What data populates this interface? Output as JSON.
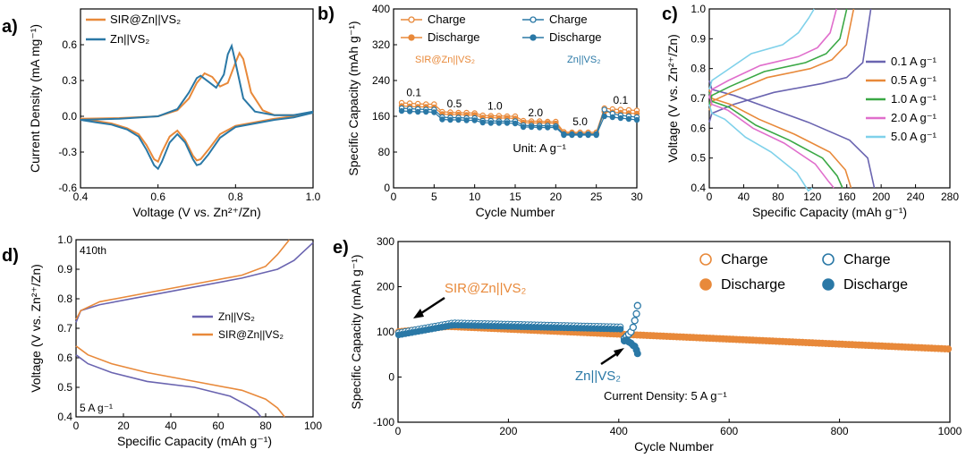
{
  "panels": [
    {
      "label": "a)"
    },
    {
      "label": "b)"
    },
    {
      "label": "c)"
    },
    {
      "label": "d)"
    },
    {
      "label": "e)"
    }
  ],
  "colors": {
    "orange": "#e8893a",
    "blue": "#2a78a6",
    "purple": "#6a64b0",
    "green": "#3aa845",
    "pink": "#e06ecc",
    "lightblue": "#7fd1ea"
  },
  "chart_data": [
    {
      "id": "a",
      "type": "line",
      "xlabel": "Voltage (V vs. Zn²⁺/Zn)",
      "ylabel": "Current Density (mA mg⁻¹)",
      "xlim": [
        0.4,
        1.0
      ],
      "ylim": [
        -0.6,
        0.9
      ],
      "xticks": [
        "0.4",
        "0.6",
        "0.8",
        "1.0"
      ],
      "yticks": [
        "-0.6",
        "-0.3",
        "0.0",
        "0.3",
        "0.6"
      ],
      "ytick_values": [
        -0.6,
        -0.3,
        0.0,
        0.3,
        0.6
      ],
      "legend": [
        "SIR@Zn||VS₂",
        "Zn||VS₂"
      ],
      "series": [
        {
          "name": "SIR@Zn||VS₂",
          "color": "#e8893a",
          "anodic_x": [
            0.4,
            0.5,
            0.6,
            0.65,
            0.68,
            0.7,
            0.72,
            0.74,
            0.76,
            0.78,
            0.8,
            0.81,
            0.82,
            0.84,
            0.87,
            0.9,
            0.95,
            1.0
          ],
          "anodic_y": [
            -0.02,
            -0.015,
            0.0,
            0.05,
            0.15,
            0.28,
            0.36,
            0.33,
            0.25,
            0.28,
            0.45,
            0.53,
            0.48,
            0.2,
            0.05,
            0.01,
            0.01,
            0.03
          ],
          "cathodic_x": [
            1.0,
            0.95,
            0.9,
            0.85,
            0.8,
            0.76,
            0.73,
            0.71,
            0.7,
            0.69,
            0.67,
            0.65,
            0.63,
            0.61,
            0.6,
            0.59,
            0.57,
            0.55,
            0.52,
            0.48,
            0.44,
            0.4
          ],
          "cathodic_y": [
            0.03,
            0.0,
            -0.02,
            -0.05,
            -0.08,
            -0.15,
            -0.28,
            -0.36,
            -0.37,
            -0.33,
            -0.2,
            -0.12,
            -0.17,
            -0.3,
            -0.38,
            -0.36,
            -0.24,
            -0.15,
            -0.1,
            -0.06,
            -0.04,
            -0.02
          ]
        },
        {
          "name": "Zn||VS₂",
          "color": "#2a78a6",
          "anodic_x": [
            0.4,
            0.5,
            0.6,
            0.65,
            0.68,
            0.7,
            0.71,
            0.73,
            0.75,
            0.77,
            0.78,
            0.79,
            0.8,
            0.82,
            0.85,
            0.9,
            0.95,
            1.0
          ],
          "anodic_y": [
            -0.03,
            -0.02,
            0.0,
            0.06,
            0.2,
            0.32,
            0.34,
            0.29,
            0.24,
            0.35,
            0.52,
            0.59,
            0.45,
            0.15,
            0.04,
            0.01,
            0.01,
            0.04
          ],
          "cathodic_x": [
            1.0,
            0.95,
            0.9,
            0.85,
            0.8,
            0.76,
            0.73,
            0.71,
            0.7,
            0.69,
            0.67,
            0.65,
            0.63,
            0.61,
            0.6,
            0.59,
            0.57,
            0.55,
            0.52,
            0.48,
            0.44,
            0.4
          ],
          "cathodic_y": [
            0.03,
            -0.01,
            -0.03,
            -0.06,
            -0.09,
            -0.18,
            -0.32,
            -0.4,
            -0.41,
            -0.36,
            -0.22,
            -0.15,
            -0.22,
            -0.38,
            -0.44,
            -0.41,
            -0.28,
            -0.17,
            -0.11,
            -0.07,
            -0.05,
            -0.03
          ]
        }
      ]
    },
    {
      "id": "b",
      "type": "line",
      "xlabel": "Cycle Number",
      "ylabel": "Specific Capacity (mAh g⁻¹)",
      "xlim": [
        0,
        30
      ],
      "ylim": [
        0,
        400
      ],
      "xticks": [
        "0",
        "5",
        "10",
        "15",
        "20",
        "25",
        "30"
      ],
      "yticks": [
        "0",
        "80",
        "160",
        "240",
        "320",
        "400"
      ],
      "ytick_values": [
        0,
        80,
        160,
        240,
        320,
        400
      ],
      "rate_labels": [
        "0.1",
        "0.5",
        "1.0",
        "2.0",
        "5.0",
        "0.1"
      ],
      "rate_label_x": [
        2.5,
        7.5,
        12.5,
        17.5,
        23,
        28
      ],
      "rate_label_y": [
        205,
        180,
        175,
        160,
        140,
        188
      ],
      "unit_text": "Unit: A g⁻¹",
      "legend_sir": [
        "Charge",
        "Discharge"
      ],
      "legend_zn": [
        "Charge",
        "Discharge"
      ],
      "legend_sir_title": "SIR@Zn||VS₂",
      "legend_zn_title": "Zn||VS₂",
      "series": [
        {
          "name": "SIR Charge",
          "color": "#e8893a",
          "filled": false,
          "x": [
            1,
            2,
            3,
            4,
            5,
            6,
            7,
            8,
            9,
            10,
            11,
            12,
            13,
            14,
            15,
            16,
            17,
            18,
            19,
            20,
            21,
            22,
            23,
            24,
            25,
            26,
            27,
            28,
            29,
            30
          ],
          "y": [
            190,
            189,
            188,
            187,
            187,
            170,
            169,
            168,
            168,
            167,
            162,
            161,
            161,
            160,
            160,
            150,
            149,
            149,
            148,
            148,
            125,
            124,
            124,
            124,
            124,
            178,
            176,
            175,
            174,
            173
          ]
        },
        {
          "name": "SIR Discharge",
          "color": "#e8893a",
          "filled": true,
          "x": [
            1,
            2,
            3,
            4,
            5,
            6,
            7,
            8,
            9,
            10,
            11,
            12,
            13,
            14,
            15,
            16,
            17,
            18,
            19,
            20,
            21,
            22,
            23,
            24,
            25,
            26,
            27,
            28,
            29,
            30
          ],
          "y": [
            183,
            182,
            181,
            181,
            180,
            165,
            164,
            164,
            163,
            163,
            157,
            157,
            156,
            156,
            155,
            146,
            145,
            145,
            145,
            144,
            122,
            122,
            121,
            121,
            121,
            170,
            169,
            168,
            167,
            166
          ]
        },
        {
          "name": "Zn Charge",
          "color": "#2a78a6",
          "filled": false,
          "x": [
            1,
            2,
            3,
            4,
            5,
            6,
            7,
            8,
            9,
            10,
            11,
            12,
            13,
            14,
            15,
            16,
            17,
            18,
            19,
            20,
            21,
            22,
            23,
            24,
            25,
            26,
            27,
            28,
            29,
            30
          ],
          "y": [
            178,
            177,
            176,
            175,
            175,
            158,
            157,
            157,
            156,
            156,
            150,
            150,
            149,
            149,
            149,
            140,
            139,
            139,
            139,
            138,
            120,
            120,
            120,
            120,
            120,
            175,
            166,
            162,
            160,
            158
          ]
        },
        {
          "name": "Zn Discharge",
          "color": "#2a78a6",
          "filled": true,
          "x": [
            1,
            2,
            3,
            4,
            5,
            6,
            7,
            8,
            9,
            10,
            11,
            12,
            13,
            14,
            15,
            16,
            17,
            18,
            19,
            20,
            21,
            22,
            23,
            24,
            25,
            26,
            27,
            28,
            29,
            30
          ],
          "y": [
            172,
            171,
            170,
            170,
            169,
            153,
            152,
            152,
            151,
            151,
            146,
            145,
            145,
            145,
            144,
            136,
            136,
            135,
            135,
            135,
            118,
            118,
            118,
            118,
            118,
            160,
            158,
            156,
            154,
            152
          ]
        }
      ]
    },
    {
      "id": "c",
      "type": "line",
      "xlabel": "Specific Capacity (mAh g⁻¹)",
      "ylabel": "Voltage (V vs. Zn²⁺/Zn)",
      "xlim": [
        0,
        280
      ],
      "ylim": [
        0.4,
        1.0
      ],
      "xticks": [
        "0",
        "40",
        "80",
        "120",
        "160",
        "200",
        "240",
        "280"
      ],
      "yticks": [
        "0.4",
        "0.5",
        "0.6",
        "0.7",
        "0.8",
        "0.9",
        "1.0"
      ],
      "ytick_values": [
        0.4,
        0.5,
        0.6,
        0.7,
        0.8,
        0.9,
        1.0
      ],
      "legend": [
        "0.1 A g⁻¹",
        "0.5 A g⁻¹",
        "1.0 A g⁻¹",
        "2.0 A g⁻¹",
        "5.0 A g⁻¹"
      ],
      "series": [
        {
          "name": "0.1 A g⁻¹",
          "color": "#6a64b0",
          "charge_cap": 188,
          "dis_cap": 192,
          "c_start": 0.62,
          "c_mid": 0.75,
          "c_end_start": 0.77,
          "d_start": 0.76,
          "d_mid": 0.6,
          "d_end": 0.56
        },
        {
          "name": "0.5 A g⁻¹",
          "color": "#e8893a",
          "charge_cap": 168,
          "dis_cap": 165,
          "c_start": 0.66,
          "c_mid": 0.8,
          "c_end_start": 0.83,
          "d_start": 0.73,
          "d_mid": 0.56,
          "d_end": 0.52
        },
        {
          "name": "1.0 A g⁻¹",
          "color": "#3aa845",
          "charge_cap": 160,
          "dis_cap": 155,
          "c_start": 0.68,
          "c_mid": 0.82,
          "c_end_start": 0.85,
          "d_start": 0.72,
          "d_mid": 0.54,
          "d_end": 0.5
        },
        {
          "name": "2.0 A g⁻¹",
          "color": "#e06ecc",
          "charge_cap": 148,
          "dis_cap": 145,
          "c_start": 0.7,
          "c_mid": 0.84,
          "c_end_start": 0.87,
          "d_start": 0.71,
          "d_mid": 0.53,
          "d_end": 0.48
        },
        {
          "name": "5.0 A g⁻¹",
          "color": "#7fd1ea",
          "charge_cap": 122,
          "dis_cap": 120,
          "c_start": 0.73,
          "c_mid": 0.88,
          "c_end_start": 0.92,
          "d_start": 0.68,
          "d_mid": 0.5,
          "d_end": 0.45
        }
      ]
    },
    {
      "id": "d",
      "type": "line",
      "xlabel": "Specific Capacity (mAh g⁻¹)",
      "ylabel": "Voltage (V vs. Zn²⁺/Zn)",
      "xlim": [
        0,
        100
      ],
      "ylim": [
        0.4,
        1.0
      ],
      "xticks": [
        "0",
        "20",
        "40",
        "60",
        "80",
        "100"
      ],
      "yticks": [
        "0.4",
        "0.5",
        "0.6",
        "0.7",
        "0.8",
        "0.9",
        "1.0"
      ],
      "ytick_values": [
        0.4,
        0.5,
        0.6,
        0.7,
        0.8,
        0.9,
        1.0
      ],
      "cycle_label": "410th",
      "rate_label": "5 A g⁻¹",
      "legend": [
        "Zn||VS₂",
        "SIR@Zn||VS₂"
      ],
      "series": [
        {
          "name": "Zn||VS₂",
          "color": "#6a64b0",
          "charge_x": [
            0,
            2,
            10,
            30,
            50,
            70,
            85,
            92,
            96,
            100
          ],
          "charge_y": [
            0.72,
            0.76,
            0.78,
            0.81,
            0.84,
            0.87,
            0.9,
            0.93,
            0.96,
            0.99
          ],
          "dis_x": [
            0,
            5,
            15,
            30,
            50,
            65,
            72,
            76,
            78
          ],
          "dis_y": [
            0.61,
            0.58,
            0.55,
            0.52,
            0.5,
            0.47,
            0.44,
            0.42,
            0.4
          ]
        },
        {
          "name": "SIR@Zn||VS₂",
          "color": "#e8893a",
          "charge_x": [
            0,
            2,
            10,
            30,
            50,
            70,
            80,
            85,
            88,
            90
          ],
          "charge_y": [
            0.73,
            0.76,
            0.79,
            0.82,
            0.85,
            0.88,
            0.91,
            0.95,
            0.98,
            1.0
          ],
          "dis_x": [
            0,
            5,
            15,
            30,
            50,
            70,
            80,
            85,
            88
          ],
          "dis_y": [
            0.64,
            0.61,
            0.58,
            0.55,
            0.52,
            0.49,
            0.46,
            0.43,
            0.4
          ]
        }
      ]
    },
    {
      "id": "e",
      "type": "scatter",
      "xlabel": "Cycle Number",
      "ylabel": "Specific Capacity (mAh g⁻¹)",
      "xlim": [
        0,
        1000
      ],
      "ylim": [
        -100,
        300
      ],
      "xticks": [
        "0",
        "200",
        "400",
        "600",
        "800",
        "1000"
      ],
      "yticks": [
        "-100",
        "0",
        "100",
        "200",
        "300"
      ],
      "ytick_values": [
        -100,
        0,
        100,
        200,
        300
      ],
      "annotation_sir": "SIR@Zn||VS₂",
      "annotation_zn": "Zn||VS₂",
      "current_text": "Current Density: 5 A g⁻¹",
      "legend_sir": [
        "Charge",
        "Discharge"
      ],
      "legend_zn": [
        "Charge",
        "Discharge"
      ],
      "series": [
        {
          "name": "SIR@Zn||VS₂",
          "color": "#e8893a",
          "x_start": 1,
          "x_end": 1000,
          "y_start": 100,
          "y_peak": 112,
          "peak_x": 90,
          "y_end": 62
        },
        {
          "name": "Zn||VS₂",
          "color": "#2a78a6",
          "x_start": 1,
          "x_end": 435,
          "y_start": 95,
          "y_peak": 117,
          "peak_x": 100,
          "y_end": 108,
          "fail_x": [
            410,
            414,
            418,
            422,
            426,
            429,
            432,
            434
          ],
          "fail_y": [
            85,
            90,
            95,
            100,
            110,
            125,
            140,
            158
          ],
          "fail_low_y": [
            80,
            82,
            78,
            75,
            70,
            68,
            60,
            52
          ]
        }
      ]
    }
  ]
}
